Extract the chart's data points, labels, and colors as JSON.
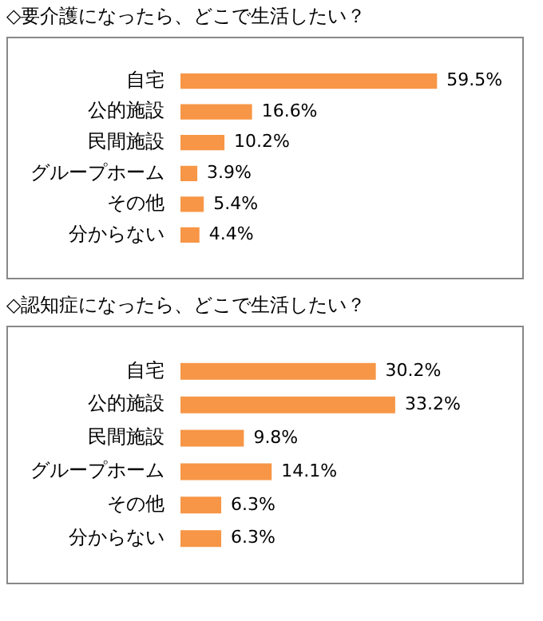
{
  "chart_data": [
    {
      "type": "bar",
      "orientation": "horizontal",
      "title": "◇要介護になったら、どこで生活したい？",
      "categories": [
        "自宅",
        "公的施設",
        "民間施設",
        "グループホーム",
        "その他",
        "分からない"
      ],
      "values": [
        59.5,
        16.6,
        10.2,
        3.9,
        5.4,
        4.4
      ],
      "value_labels": [
        "59.5%",
        "16.6%",
        "10.2%",
        "3.9%",
        "5.4%",
        "4.4%"
      ],
      "color": "#f79646"
    },
    {
      "type": "bar",
      "orientation": "horizontal",
      "title": "◇認知症になったら、どこで生活したい？",
      "categories": [
        "自宅",
        "公的施設",
        "民間施設",
        "グループホーム",
        "その他",
        "分からない"
      ],
      "values": [
        30.2,
        33.2,
        9.8,
        14.1,
        6.3,
        6.3
      ],
      "value_labels": [
        "30.2%",
        "33.2%",
        "9.8%",
        "14.1%",
        "6.3%",
        "6.3%"
      ],
      "color": "#f79646"
    }
  ]
}
